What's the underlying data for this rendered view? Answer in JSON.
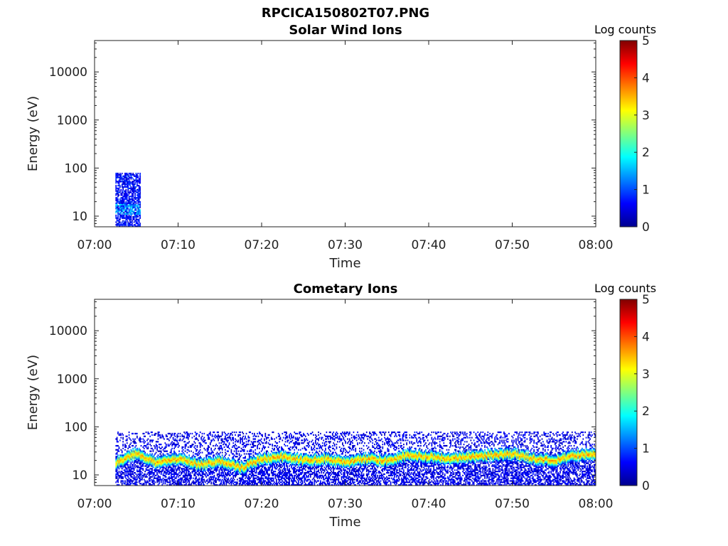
{
  "figure_title": "RPCICA150802T07.PNG",
  "chart_data": [
    {
      "type": "heatmap",
      "title": "Solar Wind Ions",
      "xlabel": "Time",
      "ylabel": "Energy (eV)",
      "x_range": [
        "07:00",
        "08:00"
      ],
      "x_ticks": [
        "07:00",
        "07:10",
        "07:20",
        "07:30",
        "07:40",
        "07:50",
        "08:00"
      ],
      "y_scale": "log",
      "y_range": [
        6,
        45000
      ],
      "y_ticks": [
        "10",
        "100",
        "1000",
        "10000"
      ],
      "y_tick_values": [
        10,
        100,
        1000,
        10000
      ],
      "colorbar": {
        "label": "Log counts",
        "range": [
          0,
          5
        ],
        "ticks": [
          "0",
          "1",
          "2",
          "3",
          "4",
          "5"
        ],
        "colormap": "jet"
      },
      "data_extent": {
        "time_start": "07:02.5",
        "time_end": "07:05.5",
        "energy_min_eV": 6,
        "energy_max_eV": 80
      },
      "peak_log_counts": 1.8
    },
    {
      "type": "heatmap",
      "title": "Cometary Ions",
      "xlabel": "Time",
      "ylabel": "Energy (eV)",
      "x_range": [
        "07:00",
        "08:00"
      ],
      "x_ticks": [
        "07:00",
        "07:10",
        "07:20",
        "07:30",
        "07:40",
        "07:50",
        "08:00"
      ],
      "y_scale": "log",
      "y_range": [
        6,
        45000
      ],
      "y_ticks": [
        "10",
        "100",
        "1000",
        "10000"
      ],
      "y_tick_values": [
        10,
        100,
        1000,
        10000
      ],
      "colorbar": {
        "label": "Log counts",
        "range": [
          0,
          5
        ],
        "ticks": [
          "0",
          "1",
          "2",
          "3",
          "4",
          "5"
        ],
        "colormap": "jet"
      },
      "data_extent": {
        "time_start": "07:02.5",
        "time_end": "08:00",
        "energy_min_eV": 6,
        "energy_max_eV": 80
      },
      "peak_band": {
        "time_min": [
          2.5,
          5,
          7.5,
          10,
          12.5,
          15,
          17.5,
          20,
          22.5,
          25,
          27.5,
          30,
          32.5,
          35,
          37.5,
          40,
          42.5,
          45,
          47.5,
          50,
          52.5,
          55,
          57.5,
          60
        ],
        "energy_eV": [
          18,
          28,
          18,
          22,
          16,
          20,
          14,
          22,
          24,
          20,
          22,
          18,
          22,
          20,
          26,
          24,
          22,
          24,
          26,
          28,
          22,
          20,
          26,
          28
        ],
        "peak_log_counts": 3.9
      }
    }
  ],
  "colors": {
    "frame": "#222222",
    "background": "#ffffff"
  }
}
